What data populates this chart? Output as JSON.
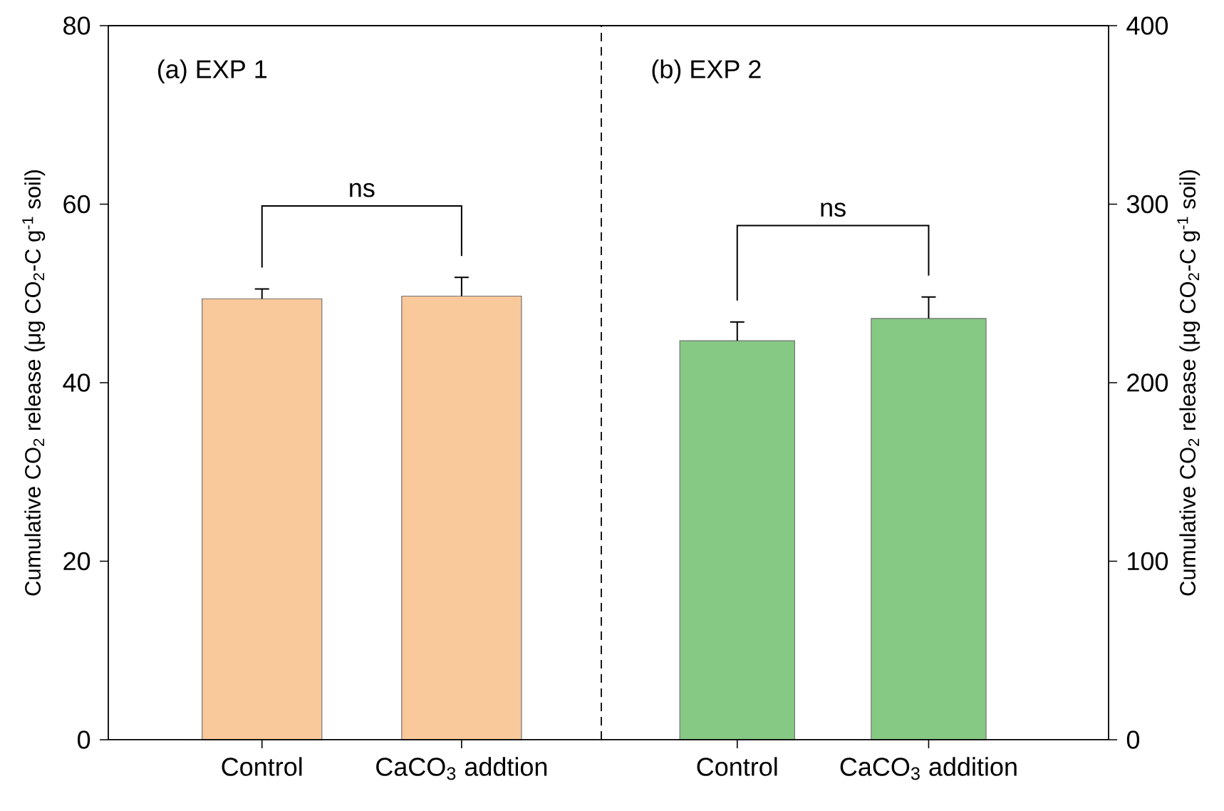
{
  "chart_data": [
    {
      "type": "bar",
      "title": "(a) EXP 1",
      "ylabel": "Cumulative CO$_{2}$ release (μg CO$_{2}$-C g$^{-1}$ soil)",
      "categories": [
        "Control",
        "CaCO$_{3}$ addtion"
      ],
      "series": [
        {
          "color": "#f9c89b",
          "values": [
            49.4,
            49.7
          ],
          "errors": [
            1.1,
            2.1
          ]
        }
      ],
      "ylim": [
        0,
        80
      ],
      "yticks": [
        0,
        20,
        40,
        60,
        80
      ],
      "annotations": [
        "ns"
      ]
    },
    {
      "type": "bar",
      "title": "(b) EXP 2",
      "y2label": "Cumulative CO$_{2}$ release (μg CO$_{2}$-C g$^{-1}$ soil)",
      "categories": [
        "Control",
        "CaCO$_{3}$ addition"
      ],
      "series": [
        {
          "color": "#86c984",
          "values": [
            223.5,
            236
          ],
          "errors": [
            10.5,
            12
          ],
          "axis": "y2"
        }
      ],
      "y2lim": [
        0,
        400
      ],
      "y2ticks": [
        0,
        100,
        200,
        300,
        400
      ],
      "annotations": [
        "ns"
      ]
    }
  ]
}
